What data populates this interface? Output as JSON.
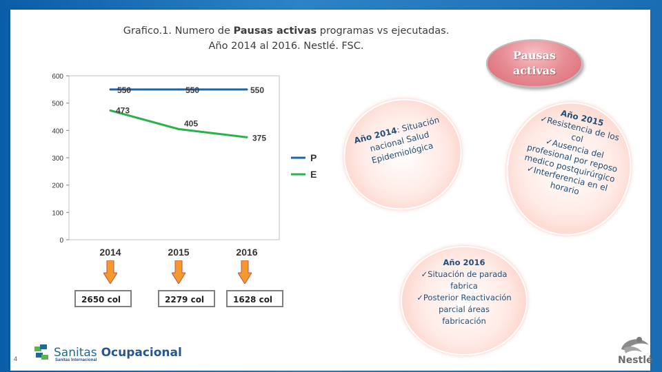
{
  "title": {
    "line1_pre": "Grafico.1. Numero de ",
    "line1_bold": "Pausas activas",
    "line1_post": " programas vs ejecutadas.",
    "line2": "Año 2014 al 2016. Nestlé. FSC."
  },
  "chart_data": {
    "type": "line",
    "categories": [
      "2014",
      "2015",
      "2016"
    ],
    "series": [
      {
        "name": "P",
        "values": [
          550,
          550,
          550
        ],
        "color": "#1f63a8"
      },
      {
        "name": "E",
        "values": [
          473,
          405,
          375
        ],
        "color": "#27b34a"
      }
    ],
    "data_labels": {
      "P": [
        "550",
        "550",
        "550"
      ],
      "E": [
        "473",
        "405",
        "375"
      ]
    },
    "yticks": [
      "0",
      "100",
      "200",
      "300",
      "400",
      "500",
      "600"
    ],
    "ylim": [
      0,
      600
    ],
    "legend_position": "right",
    "grid": false
  },
  "collaborators": [
    "2650 col",
    "2279 col",
    "1628 col"
  ],
  "arrow_color": "#f29a2b",
  "pill_label": {
    "line1": "Pausas",
    "line2": "activas"
  },
  "bubbles": {
    "y2014": {
      "year": "Año 2014",
      "colon": ":",
      "text": "Situación nacional Salud Epidemiológica"
    },
    "y2015": {
      "year": "Año 2015",
      "items": [
        "Resistencia de los col",
        "Ausencia del profesional por reposo medico postquirúrgico",
        "Interferencia en el horario"
      ]
    },
    "y2016": {
      "year": "Año 2016",
      "items": [
        "Situación de parada fabrica",
        "Posterior Reactivación parcial áreas fabricación"
      ]
    }
  },
  "check_glyph": "✓",
  "page_number": "4",
  "footer": {
    "sanitas_1": "Sanitas",
    "sanitas_2": " Ocupacional",
    "sanitas_sub": "Sanitas Internacional",
    "nestle": "Nestlé"
  }
}
